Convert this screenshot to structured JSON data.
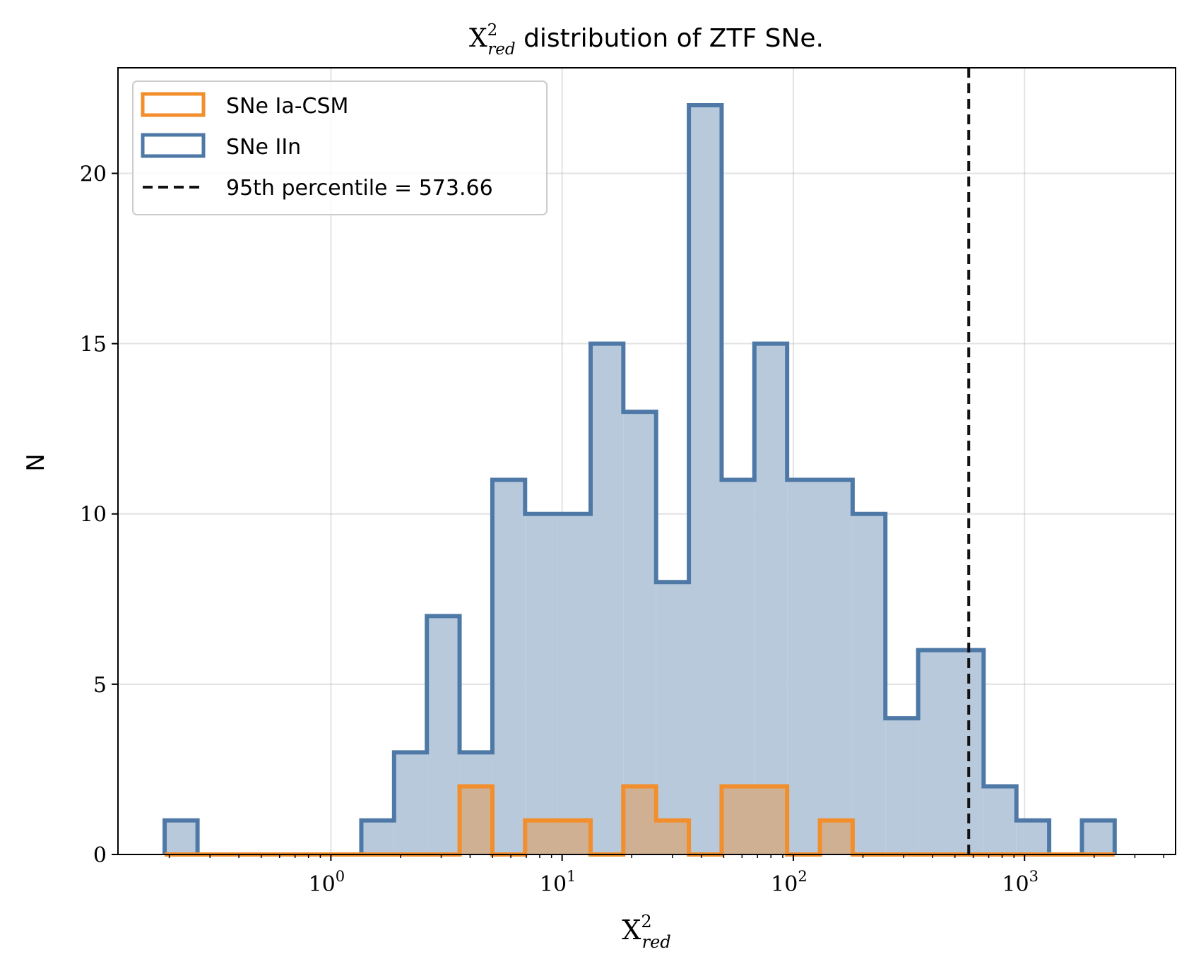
{
  "chart_data": {
    "type": "bar",
    "title": {
      "prefix": "X",
      "sup": "2",
      "sub": "red",
      "suffix": " distribution of ZTF SNe."
    },
    "xlabel": {
      "base": "X",
      "sup": "2",
      "sub": "red"
    },
    "ylabel": "N",
    "x_scale": "log",
    "xlim": [
      0.12,
      4500
    ],
    "ylim": [
      0,
      23.1
    ],
    "x_ticks": [
      {
        "value": 1,
        "base": "10",
        "exp": "0"
      },
      {
        "value": 10,
        "base": "10",
        "exp": "1"
      },
      {
        "value": 100,
        "base": "10",
        "exp": "2"
      },
      {
        "value": 1000,
        "base": "10",
        "exp": "3"
      }
    ],
    "y_ticks": [
      0,
      5,
      10,
      15,
      20
    ],
    "y_tick_labels": [
      "0",
      "5",
      "10",
      "15",
      "20"
    ],
    "grid": true,
    "legend_position": "top-left",
    "bin_edges": [
      0.191,
      0.265,
      0.367,
      0.509,
      0.705,
      0.977,
      1.354,
      1.876,
      2.6,
      3.603,
      4.992,
      6.917,
      9.585,
      13.28,
      18.4,
      25.5,
      35.34,
      48.97,
      67.85,
      94.02,
      130.3,
      180.5,
      250.1,
      346.6,
      480.3,
      665.5,
      922.2,
      1277.9,
      1770.8,
      2453.8
    ],
    "series": [
      {
        "name": "SNe IIn",
        "style": "step-filled",
        "edge_color": "#4e79a7",
        "fill_color": "#b8c9dc",
        "counts": [
          1,
          0,
          0,
          0,
          0,
          0,
          1,
          3,
          7,
          3,
          11,
          10,
          10,
          15,
          13,
          8,
          22,
          11,
          15,
          11,
          11,
          10,
          4,
          6,
          6,
          2,
          1,
          0,
          1
        ]
      },
      {
        "name": "SNe Ia-CSM",
        "style": "step-filled",
        "edge_color": "#f28e2b",
        "fill_color": "#d0b093",
        "counts": [
          0,
          0,
          0,
          0,
          0,
          0,
          0,
          0,
          0,
          2,
          0,
          1,
          1,
          0,
          2,
          1,
          0,
          2,
          2,
          0,
          1,
          0,
          0,
          0,
          0,
          0,
          0,
          0,
          0
        ]
      }
    ],
    "vline": {
      "x": 573.66,
      "label": "95th percentile = 573.66",
      "color": "#111111",
      "style": "dashed"
    }
  }
}
